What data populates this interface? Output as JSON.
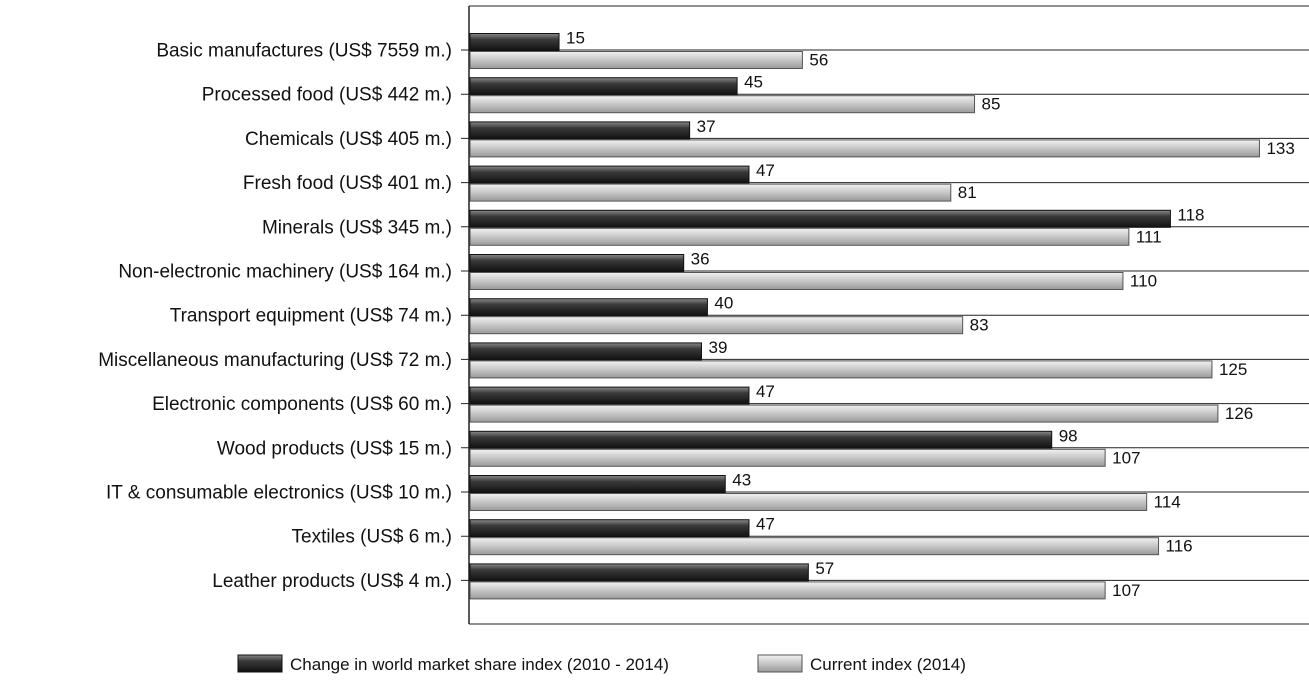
{
  "chart_data": {
    "type": "bar",
    "orientation": "horizontal",
    "categories": [
      "Basic manufactures (US$ 7559 m.)",
      "Processed food (US$ 442 m.)",
      "Chemicals (US$ 405 m.)",
      "Fresh food (US$ 401 m.)",
      "Minerals (US$ 345 m.)",
      "Non-electronic machinery (US$ 164 m.)",
      "Transport equipment (US$ 74 m.)",
      "Miscellaneous manufacturing (US$ 72 m.)",
      "Electronic components (US$ 60 m.)",
      "Wood products (US$ 15 m.)",
      "IT & consumable electronics (US$ 10 m.)",
      "Textiles (US$ 6 m.)",
      "Leather products (US$ 4 m.)"
    ],
    "series": [
      {
        "name": "Change in world market share index (2010 - 2014)",
        "color": "#2a2a2a",
        "values": [
          15,
          45,
          37,
          47,
          118,
          36,
          40,
          39,
          47,
          98,
          43,
          47,
          57
        ]
      },
      {
        "name": "Current index (2014)",
        "color": "#c4c4c4",
        "values": [
          56,
          85,
          133,
          81,
          111,
          110,
          83,
          125,
          126,
          107,
          114,
          116,
          107
        ]
      }
    ],
    "xlim": [
      0,
      140
    ],
    "grid": true,
    "legend_position": "bottom"
  }
}
